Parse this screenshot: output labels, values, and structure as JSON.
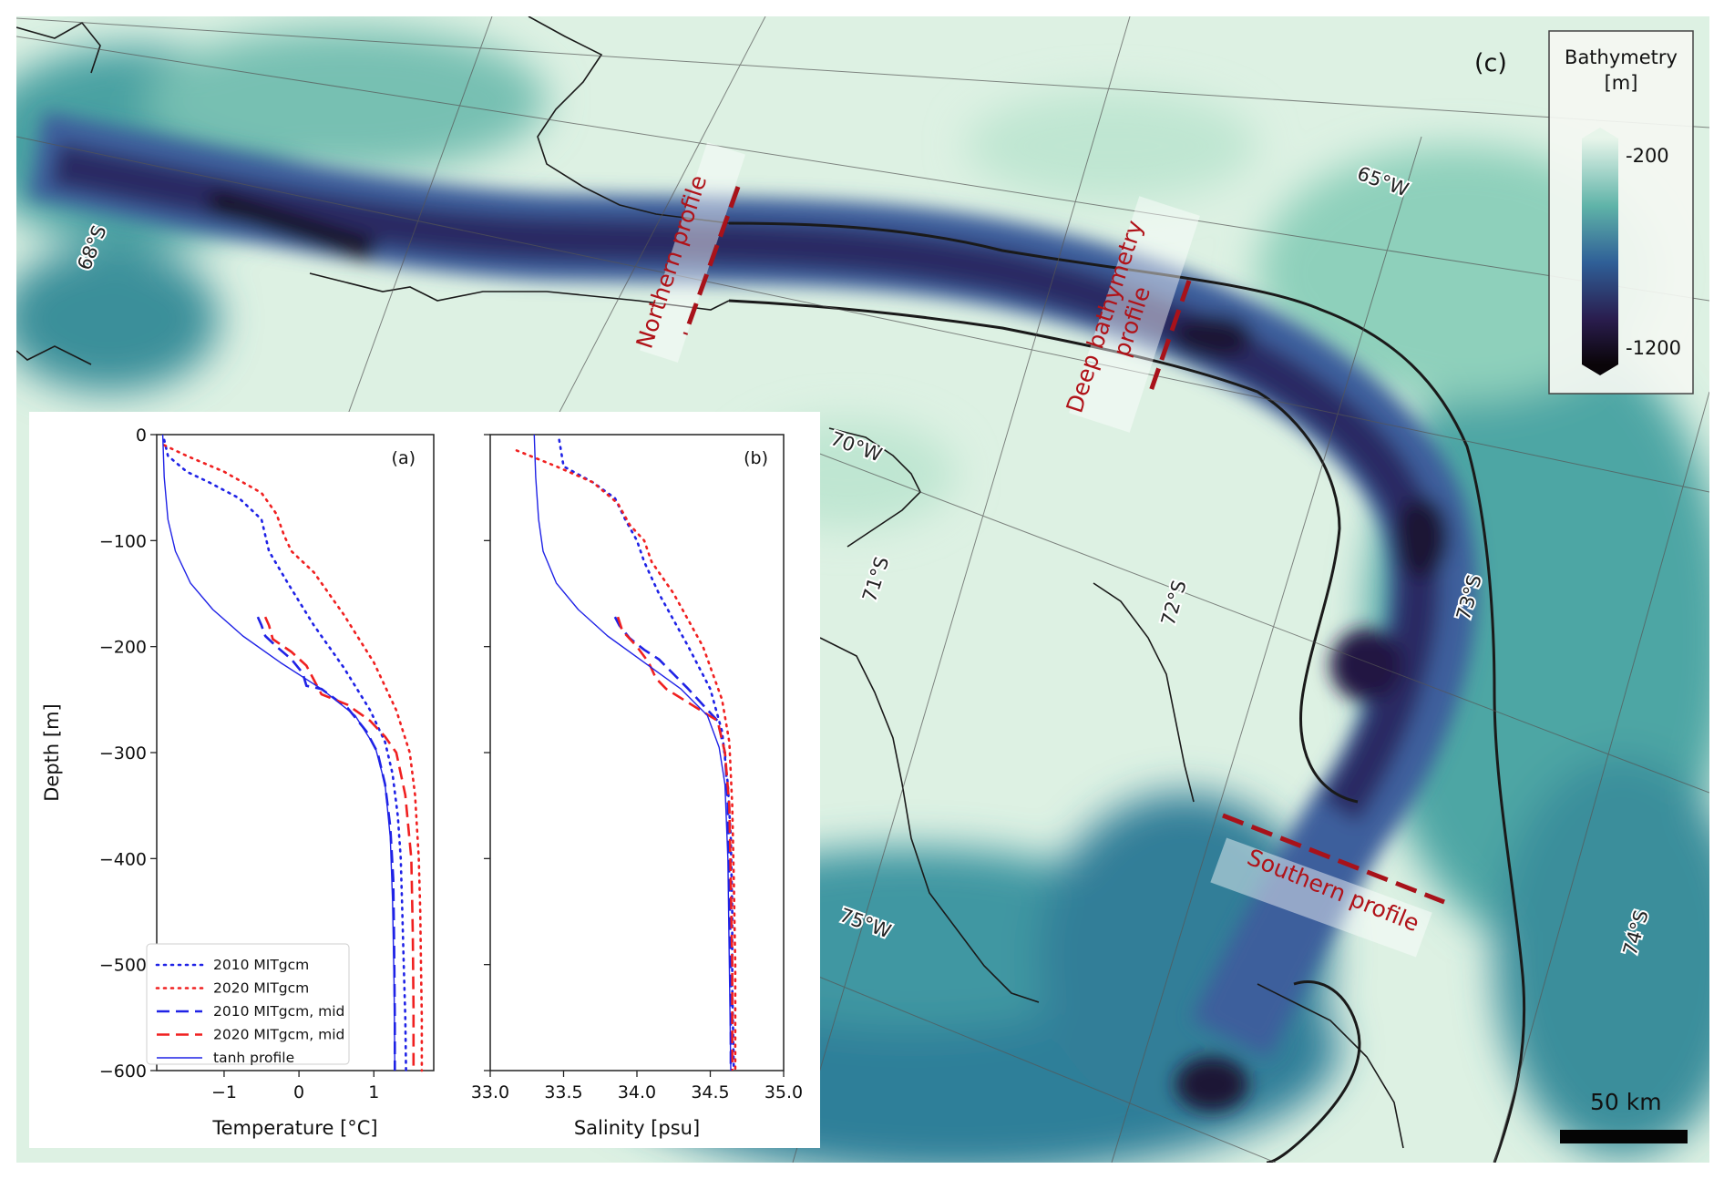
{
  "map": {
    "panel_label": "(c)",
    "grid_labels": {
      "lon": [
        "65°W",
        "70°W",
        "75°W"
      ],
      "lat": [
        "68°S",
        "71°S",
        "72°S",
        "73°S",
        "74°S"
      ]
    },
    "profiles": {
      "northern": "Northern profile",
      "deep": "Deep bathymetry profile",
      "deep_line1": "Deep bathymetry",
      "deep_line2": "profile",
      "southern": "Southern profile"
    },
    "scale_bar_label": "50 km",
    "colorbar": {
      "title_line1": "Bathymetry",
      "title_line2": "[m]",
      "max_label": "-200",
      "min_label": "-1200",
      "colors": [
        "#e7f5ea",
        "#5fb3a8",
        "#2f5f97",
        "#2a1d4e",
        "#0a0509"
      ]
    }
  },
  "chart_data": [
    {
      "type": "line",
      "panel_label": "(a)",
      "xlabel": "Temperature [°C]",
      "ylabel": "Depth [m]",
      "xlim": [
        -1.9,
        1.8
      ],
      "ylim": [
        -600,
        0
      ],
      "xticks": [
        "−1",
        "0",
        "1"
      ],
      "xtick_values": [
        -1,
        0,
        1
      ],
      "yticks": [
        "0",
        "−100",
        "−200",
        "−300",
        "−400",
        "−500",
        "−600"
      ],
      "ytick_values": [
        0,
        -100,
        -200,
        -300,
        -400,
        -500,
        -600
      ],
      "series": [
        {
          "name": "2010 MITgcm",
          "color": "#1f22e6",
          "style": "dotted",
          "x": [
            -1.8,
            -1.75,
            -1.5,
            -1.2,
            -0.8,
            -0.5,
            -0.45,
            -0.4,
            -0.15,
            0.2,
            0.6,
            0.95,
            1.15,
            1.25,
            1.32,
            1.36,
            1.38,
            1.4,
            1.42,
            1.43
          ],
          "y": [
            -5,
            -20,
            -35,
            -45,
            -60,
            -80,
            -95,
            -110,
            -140,
            -180,
            -220,
            -260,
            -290,
            -320,
            -360,
            -400,
            -450,
            -500,
            -550,
            -600
          ]
        },
        {
          "name": "2020 MITgcm",
          "color": "#f02020",
          "style": "dotted",
          "x": [
            -1.8,
            -1.5,
            -1.0,
            -0.5,
            -0.3,
            -0.2,
            -0.1,
            0.2,
            0.6,
            1.0,
            1.3,
            1.48,
            1.55,
            1.6,
            1.62,
            1.63,
            1.64,
            1.64
          ],
          "y": [
            -10,
            -20,
            -35,
            -55,
            -75,
            -95,
            -110,
            -130,
            -170,
            -215,
            -260,
            -300,
            -340,
            -400,
            -450,
            -500,
            -550,
            -600
          ]
        },
        {
          "name": "2010 MITgcm, mid",
          "color": "#1f22e6",
          "style": "dashed",
          "x": [
            -0.55,
            -0.5,
            -0.45,
            -0.3,
            -0.1,
            0.05,
            0.1,
            0.3,
            0.65,
            0.9,
            1.05,
            1.15,
            1.22,
            1.26,
            1.27,
            1.28,
            1.28
          ],
          "y": [
            -172,
            -180,
            -190,
            -200,
            -212,
            -225,
            -237,
            -240,
            -258,
            -280,
            -300,
            -330,
            -370,
            -420,
            -480,
            -550,
            -600
          ]
        },
        {
          "name": "2020 MITgcm, mid",
          "color": "#f02020",
          "style": "dashed",
          "x": [
            -0.45,
            -0.4,
            -0.35,
            -0.1,
            0.1,
            0.3,
            0.65,
            0.95,
            1.15,
            1.3,
            1.42,
            1.5,
            1.52,
            1.53,
            1.53
          ],
          "y": [
            -172,
            -180,
            -193,
            -205,
            -218,
            -245,
            -255,
            -270,
            -285,
            -300,
            -340,
            -400,
            -470,
            -540,
            -600
          ]
        },
        {
          "name": "tanh profile",
          "color": "#1f22e6",
          "style": "solid",
          "x": [
            -1.82,
            -1.8,
            -1.75,
            -1.65,
            -1.45,
            -1.15,
            -0.75,
            -0.25,
            0.3,
            0.75,
            1.02,
            1.15,
            1.22,
            1.25,
            1.27,
            1.28
          ],
          "y": [
            0,
            -40,
            -80,
            -110,
            -140,
            -165,
            -190,
            -215,
            -240,
            -265,
            -295,
            -330,
            -380,
            -440,
            -520,
            -600
          ]
        }
      ]
    },
    {
      "type": "line",
      "panel_label": "(b)",
      "xlabel": "Salinity [psu]",
      "xlim": [
        33.0,
        35.0
      ],
      "ylim": [
        -600,
        0
      ],
      "xticks": [
        "33.0",
        "33.5",
        "34.0",
        "34.5",
        "35.0"
      ],
      "xtick_values": [
        33.0,
        33.5,
        34.0,
        34.5,
        35.0
      ],
      "series": [
        {
          "name": "2010 MITgcm",
          "color": "#1f22e6",
          "style": "dotted",
          "x": [
            33.47,
            33.5,
            33.7,
            33.85,
            33.92,
            34.0,
            34.05,
            34.15,
            34.35,
            34.5,
            34.58,
            34.62,
            34.64,
            34.65,
            34.65,
            34.66
          ],
          "y": [
            -5,
            -30,
            -45,
            -60,
            -80,
            -100,
            -120,
            -150,
            -200,
            -240,
            -280,
            -330,
            -380,
            -450,
            -520,
            -600
          ]
        },
        {
          "name": "2020 MITgcm",
          "color": "#f02020",
          "style": "dotted",
          "x": [
            33.18,
            33.45,
            33.7,
            33.87,
            33.95,
            34.05,
            34.1,
            34.25,
            34.45,
            34.58,
            34.63,
            34.65,
            34.66,
            34.67,
            34.67
          ],
          "y": [
            -15,
            -30,
            -45,
            -65,
            -85,
            -100,
            -120,
            -150,
            -200,
            -250,
            -290,
            -350,
            -420,
            -500,
            -600
          ]
        },
        {
          "name": "2010 MITgcm, mid",
          "color": "#1f22e6",
          "style": "dashed",
          "x": [
            33.85,
            33.88,
            33.95,
            34.05,
            34.15,
            34.35,
            34.55,
            34.6,
            34.62,
            34.63,
            34.64,
            34.64
          ],
          "y": [
            -172,
            -180,
            -192,
            -203,
            -212,
            -240,
            -270,
            -300,
            -350,
            -420,
            -500,
            -600
          ]
        },
        {
          "name": "2020 MITgcm, mid",
          "color": "#f02020",
          "style": "dashed",
          "x": [
            33.87,
            33.9,
            34.0,
            34.08,
            34.13,
            34.2,
            34.55,
            34.6,
            34.63,
            34.64,
            34.65,
            34.65
          ],
          "y": [
            -172,
            -185,
            -200,
            -215,
            -230,
            -240,
            -270,
            -300,
            -350,
            -420,
            -500,
            -600
          ]
        },
        {
          "name": "tanh profile",
          "color": "#1f22e6",
          "style": "solid",
          "x": [
            33.3,
            33.31,
            33.33,
            33.36,
            33.45,
            33.6,
            33.8,
            34.05,
            34.3,
            34.48,
            34.56,
            34.6,
            34.62,
            34.63,
            34.64
          ],
          "y": [
            0,
            -40,
            -80,
            -110,
            -140,
            -165,
            -190,
            -215,
            -240,
            -265,
            -295,
            -330,
            -400,
            -500,
            -600
          ]
        }
      ]
    }
  ]
}
